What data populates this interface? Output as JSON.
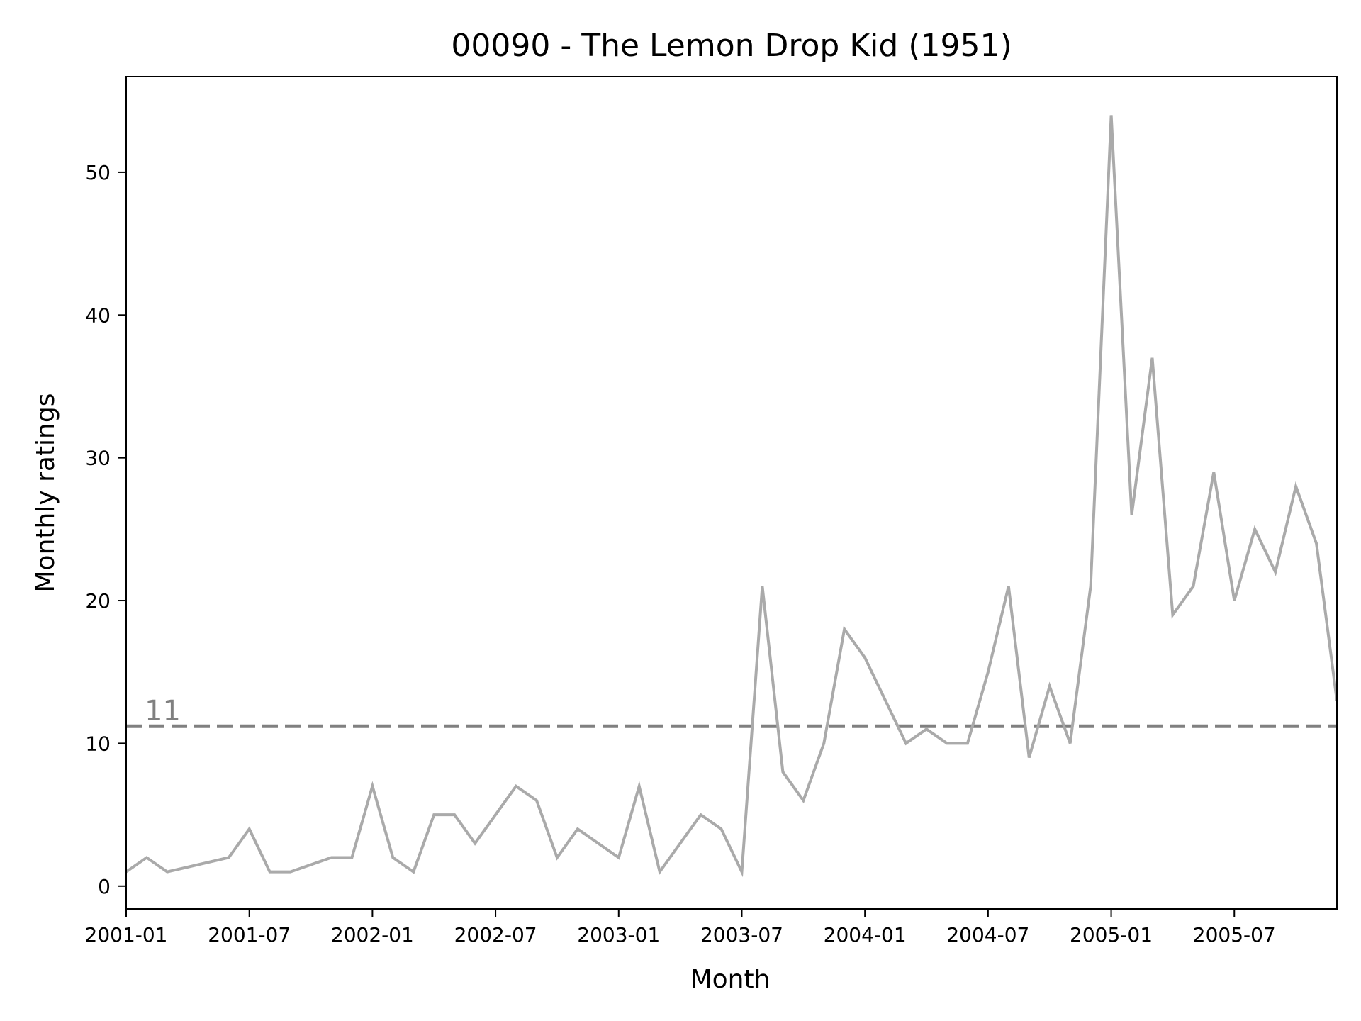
{
  "chart_data": {
    "type": "line",
    "title": "00090 - The Lemon Drop Kid (1951)",
    "xlabel": "Month",
    "ylabel": "Monthly ratings",
    "x_ticks": [
      "2001-01",
      "2001-07",
      "2002-01",
      "2002-07",
      "2003-01",
      "2003-07",
      "2004-01",
      "2004-07",
      "2005-01",
      "2005-07"
    ],
    "y_ticks": [
      0,
      10,
      20,
      30,
      40,
      50
    ],
    "ylim": [
      -1.6,
      56.7
    ],
    "xlim": [
      "2001-01",
      "2005-12"
    ],
    "grid": false,
    "legend": "none",
    "line_color": "#aaaaaa",
    "series": [
      {
        "x": [
          "2001-01",
          "2001-02",
          "2001-03",
          "2001-06",
          "2001-07",
          "2001-08",
          "2001-09",
          "2001-11",
          "2001-12",
          "2002-01",
          "2002-02",
          "2002-03",
          "2002-04",
          "2002-05",
          "2002-06",
          "2002-08",
          "2002-09",
          "2002-10",
          "2002-11",
          "2002-12",
          "2003-01",
          "2003-02",
          "2003-03",
          "2003-05",
          "2003-06",
          "2003-07",
          "2003-08",
          "2003-09",
          "2003-10",
          "2003-11",
          "2003-12",
          "2004-01",
          "2004-02",
          "2004-03",
          "2004-04",
          "2004-05",
          "2004-06",
          "2004-07",
          "2004-08",
          "2004-09",
          "2004-10",
          "2004-11",
          "2004-12",
          "2005-01",
          "2005-02",
          "2005-03",
          "2005-04",
          "2005-05",
          "2005-06",
          "2005-07",
          "2005-08",
          "2005-09",
          "2005-10",
          "2005-11",
          "2005-12"
        ],
        "values": [
          1,
          2,
          1,
          2,
          4,
          1,
          1,
          2,
          2,
          7,
          2,
          1,
          5,
          5,
          3,
          7,
          6,
          2,
          4,
          3,
          2,
          7,
          1,
          5,
          4,
          1,
          21,
          8,
          6,
          10,
          18,
          16,
          13,
          10,
          11,
          10,
          10,
          15,
          21,
          9,
          14,
          10,
          21,
          54,
          26,
          37,
          19,
          21,
          29,
          20,
          25,
          22,
          28,
          24,
          13
        ]
      }
    ],
    "reference_line": {
      "value": 11.2,
      "label": "11",
      "color": "#808080",
      "style": "dashed"
    }
  }
}
